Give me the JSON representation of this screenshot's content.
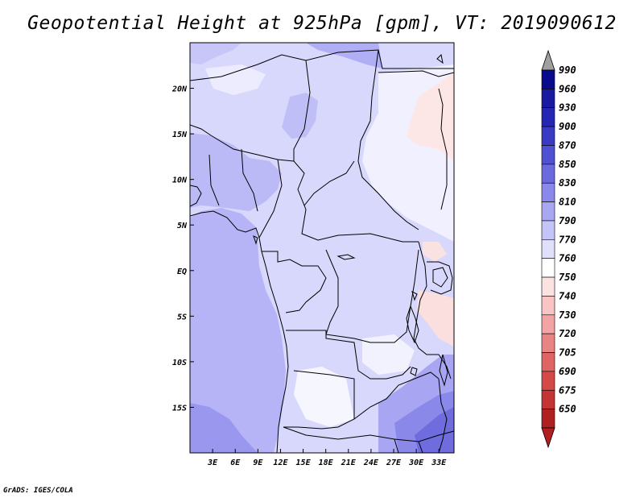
{
  "title": "Geopotential Height at 925hPa [gpm], VT: 2019090612",
  "footer": "GrADS: IGES/COLA",
  "map": {
    "variable": "Geopotential Height",
    "level": "925hPa",
    "units": "gpm",
    "valid_time": "2019090612",
    "lon_range": [
      0,
      35
    ],
    "lat_range": [
      -20,
      25
    ],
    "x_ticks": [
      {
        "value": 3,
        "label": "3E"
      },
      {
        "value": 6,
        "label": "6E"
      },
      {
        "value": 9,
        "label": "9E"
      },
      {
        "value": 12,
        "label": "12E"
      },
      {
        "value": 15,
        "label": "15E"
      },
      {
        "value": 18,
        "label": "18E"
      },
      {
        "value": 21,
        "label": "21E"
      },
      {
        "value": 24,
        "label": "24E"
      },
      {
        "value": 27,
        "label": "27E"
      },
      {
        "value": 30,
        "label": "30E"
      },
      {
        "value": 33,
        "label": "33E"
      }
    ],
    "y_ticks": [
      {
        "value": 20,
        "label": "20N"
      },
      {
        "value": 15,
        "label": "15N"
      },
      {
        "value": 10,
        "label": "10N"
      },
      {
        "value": 5,
        "label": "5N"
      },
      {
        "value": 0,
        "label": "EQ"
      },
      {
        "value": -5,
        "label": "5S"
      },
      {
        "value": -10,
        "label": "10S"
      },
      {
        "value": -15,
        "label": "15S"
      }
    ]
  },
  "legend": {
    "levels": [
      {
        "label": "990",
        "color": "#0a0a8c"
      },
      {
        "label": "960",
        "color": "#1a1aa0"
      },
      {
        "label": "930",
        "color": "#2626b4"
      },
      {
        "label": "900",
        "color": "#3a3ac4"
      },
      {
        "label": "870",
        "color": "#5050d2"
      },
      {
        "label": "850",
        "color": "#6a6ade"
      },
      {
        "label": "830",
        "color": "#8a88ea"
      },
      {
        "label": "810",
        "color": "#a8a8f2"
      },
      {
        "label": "790",
        "color": "#c4c4f8"
      },
      {
        "label": "770",
        "color": "#e0e0fc"
      },
      {
        "label": "760",
        "color": "#ffffff"
      },
      {
        "label": "750",
        "color": "#fde2e2"
      },
      {
        "label": "740",
        "color": "#f8c4c4"
      },
      {
        "label": "730",
        "color": "#f2a4a4"
      },
      {
        "label": "720",
        "color": "#e88484"
      },
      {
        "label": "705",
        "color": "#e06464"
      },
      {
        "label": "690",
        "color": "#d44848"
      },
      {
        "label": "675",
        "color": "#c43434"
      },
      {
        "label": "650",
        "color": "#b02020"
      }
    ],
    "top_arrow_color": "#a0a0a0",
    "bottom_arrow_color": "#b02020"
  }
}
